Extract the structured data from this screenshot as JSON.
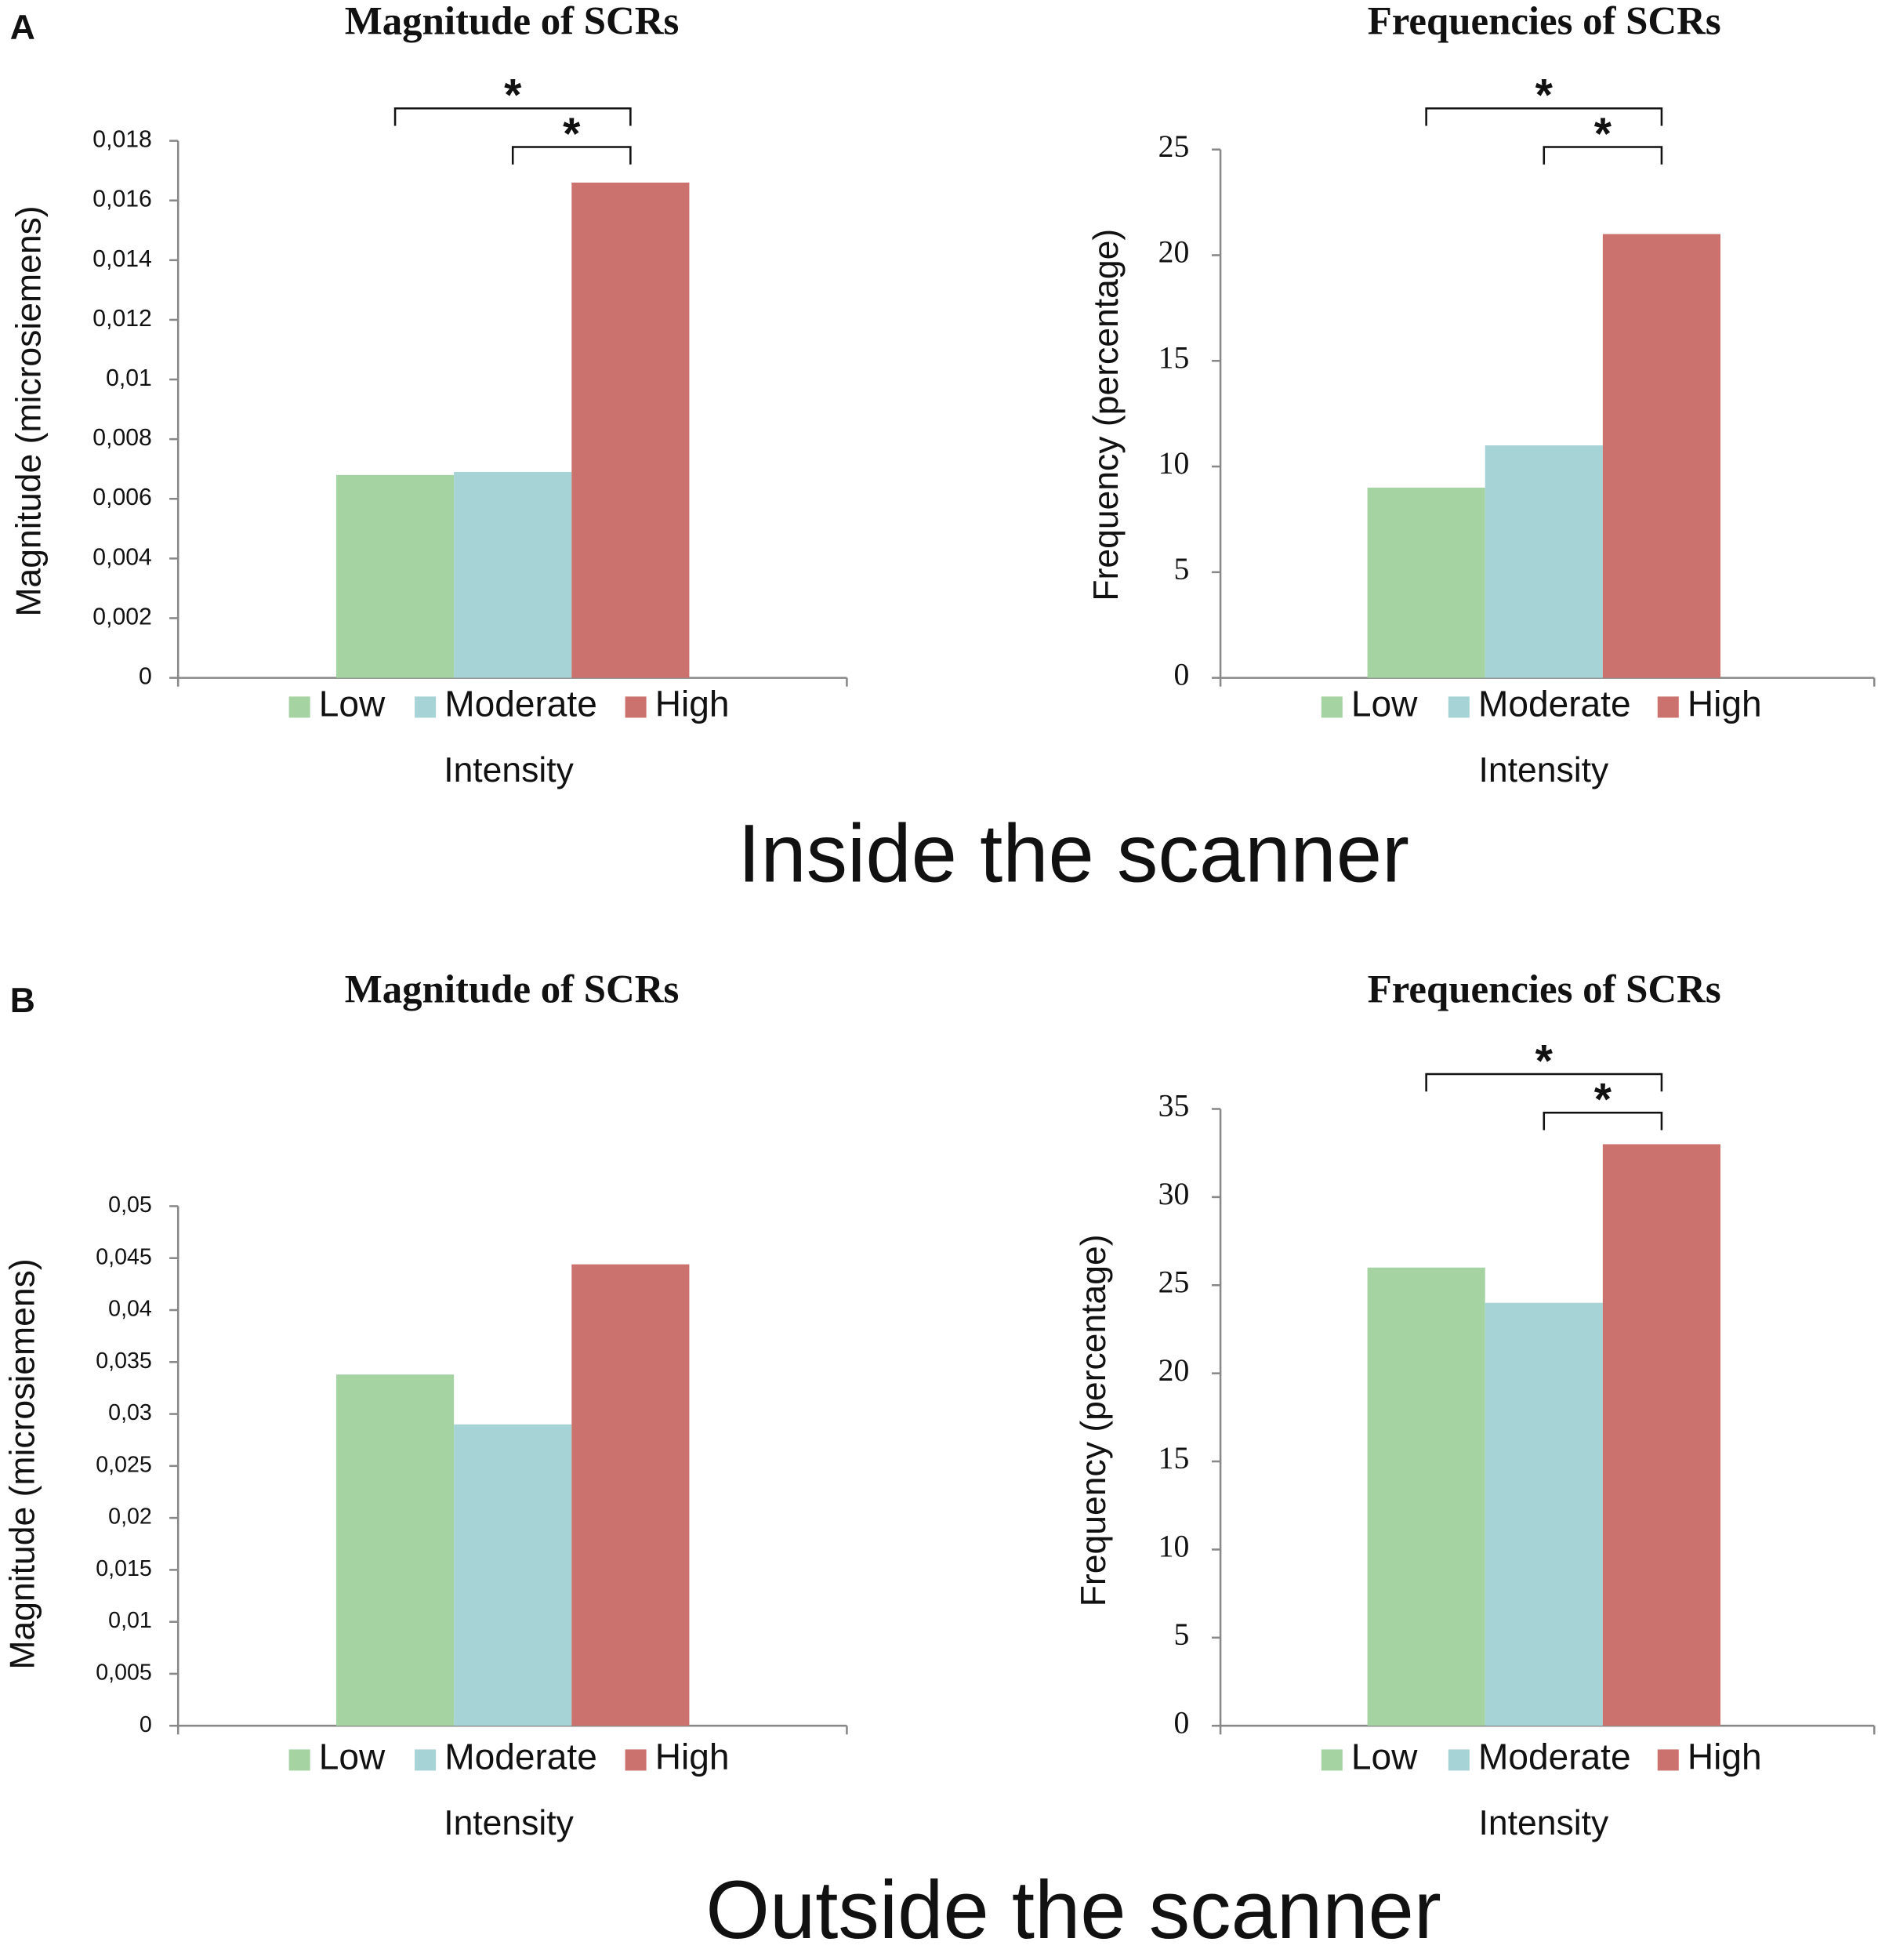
{
  "panels": [
    {
      "label": "A",
      "caption": "Inside the scanner"
    },
    {
      "label": "B",
      "caption": "Outside the scanner"
    }
  ],
  "chart_data": [
    {
      "type": "bar",
      "title": "Magnitude of SCRs",
      "ylabel": "Magnitude (microsiemens)",
      "xlabel": "Intensity",
      "categories": [
        "Low",
        "Moderate",
        "High"
      ],
      "colors": [
        "#a5d4a2",
        "#a6d3d6",
        "#cc726e"
      ],
      "values": [
        0.0068,
        0.0069,
        0.0166
      ],
      "ylim": [
        0,
        0.018
      ],
      "yticks": [
        0,
        {
          "value": 0.002,
          "label": "0,002"
        },
        {
          "value": 0.004,
          "label": "0,004"
        },
        {
          "value": 0.006,
          "label": "0,006"
        },
        {
          "value": 0.008,
          "label": "0,008"
        },
        {
          "value": 0.01,
          "label": "0,01"
        },
        {
          "value": 0.012,
          "label": "0,012"
        },
        {
          "value": 0.014,
          "label": "0,014"
        },
        {
          "value": 0.016,
          "label": "0,016"
        },
        {
          "value": 0.018,
          "label": "0,018"
        }
      ],
      "significance": [
        {
          "label": "*",
          "pair": [
            0,
            2
          ]
        },
        {
          "label": "*",
          "pair": [
            1,
            2
          ]
        }
      ]
    },
    {
      "type": "bar",
      "title": "Frequencies of SCRs",
      "ylabel": "Frequency (percentage)",
      "xlabel": "Intensity",
      "categories": [
        "Low",
        "Moderate",
        "High"
      ],
      "colors": [
        "#a5d4a2",
        "#a6d3d6",
        "#cc726e"
      ],
      "values": [
        9,
        11,
        21
      ],
      "ylim": [
        0,
        25
      ],
      "yticks": [
        0,
        5,
        10,
        15,
        20,
        25
      ],
      "significance": [
        {
          "label": "*",
          "pair": [
            0,
            2
          ]
        },
        {
          "label": "*",
          "pair": [
            1,
            2
          ]
        }
      ]
    },
    {
      "type": "bar",
      "title": "Magnitude of SCRs",
      "ylabel": "Magnitude (microsiemens)",
      "xlabel": "Intensity",
      "categories": [
        "Low",
        "Moderate",
        "High"
      ],
      "colors": [
        "#a5d4a2",
        "#a6d3d6",
        "#cc726e"
      ],
      "values": [
        0.0338,
        0.029,
        0.0444
      ],
      "ylim": [
        0,
        0.05
      ],
      "yticks": [
        0,
        {
          "value": 0.005,
          "label": "0,005"
        },
        {
          "value": 0.01,
          "label": "0,01"
        },
        {
          "value": 0.015,
          "label": "0,015"
        },
        {
          "value": 0.02,
          "label": "0,02"
        },
        {
          "value": 0.025,
          "label": "0,025"
        },
        {
          "value": 0.03,
          "label": "0,03"
        },
        {
          "value": 0.035,
          "label": "0,035"
        },
        {
          "value": 0.04,
          "label": "0,04"
        },
        {
          "value": 0.045,
          "label": "0,045"
        },
        {
          "value": 0.05,
          "label": "0,05"
        }
      ]
    },
    {
      "type": "bar",
      "title": "Frequencies of SCRs",
      "ylabel": "Frequency (percentage)",
      "xlabel": "Intensity",
      "categories": [
        "Low",
        "Moderate",
        "High"
      ],
      "colors": [
        "#a5d4a2",
        "#a6d3d6",
        "#cc726e"
      ],
      "values": [
        26,
        24,
        33
      ],
      "ylim": [
        0,
        35
      ],
      "yticks": [
        0,
        5,
        10,
        15,
        20,
        25,
        30,
        35
      ],
      "significance": [
        {
          "label": "*",
          "pair": [
            0,
            2
          ]
        },
        {
          "label": "*",
          "pair": [
            1,
            2
          ]
        }
      ]
    }
  ]
}
